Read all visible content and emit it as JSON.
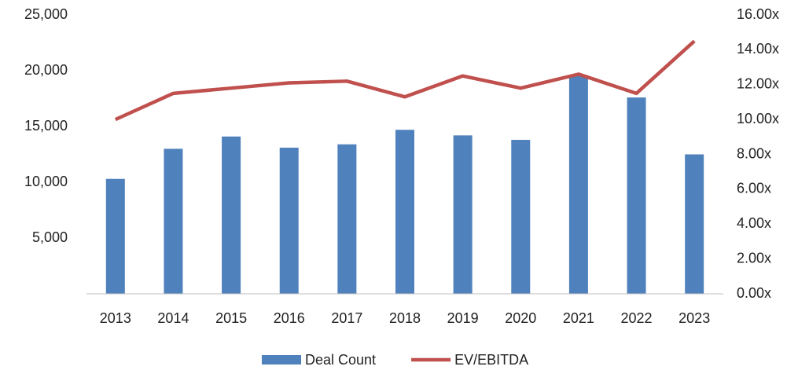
{
  "chart_data": {
    "type": "bar",
    "categories": [
      "2013",
      "2014",
      "2015",
      "2016",
      "2017",
      "2018",
      "2019",
      "2020",
      "2021",
      "2022",
      "2023"
    ],
    "series": [
      {
        "name": "Deal Count",
        "type": "bar",
        "color": "#4f81bd",
        "values": [
          10300,
          13000,
          14100,
          13100,
          13400,
          14700,
          14200,
          13800,
          19600,
          17600,
          12500
        ]
      },
      {
        "name": "EV/EBITDA",
        "type": "line",
        "axis": "y2",
        "color": "#c0504d",
        "values": [
          10.0,
          11.5,
          11.8,
          12.1,
          12.2,
          11.3,
          12.5,
          11.8,
          12.6,
          11.5,
          14.5
        ]
      }
    ],
    "ylim": [
      0,
      25000
    ],
    "yticks": [
      {
        "value": 5000,
        "label": "5,000"
      },
      {
        "value": 10000,
        "label": "10,000"
      },
      {
        "value": 15000,
        "label": "15,000"
      },
      {
        "value": 20000,
        "label": "20,000"
      },
      {
        "value": 25000,
        "label": "25,000"
      }
    ],
    "y2lim": [
      0,
      16
    ],
    "y2ticks": [
      {
        "value": 0,
        "label": "0.00x"
      },
      {
        "value": 2,
        "label": "2.00x"
      },
      {
        "value": 4,
        "label": "4.00x"
      },
      {
        "value": 6,
        "label": "6.00x"
      },
      {
        "value": 8,
        "label": "8.00x"
      },
      {
        "value": 10,
        "label": "10.00x"
      },
      {
        "value": 12,
        "label": "12.00x"
      },
      {
        "value": 14,
        "label": "14.00x"
      },
      {
        "value": 16,
        "label": "16.00x"
      }
    ],
    "grid": false,
    "legend": "bottom"
  }
}
